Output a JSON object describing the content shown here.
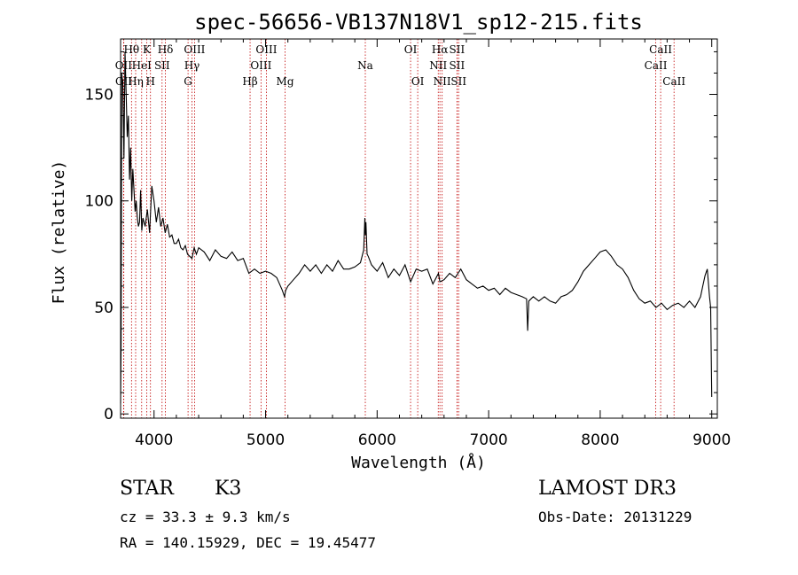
{
  "chart_data": {
    "type": "line",
    "title": "spec-56656-VB137N18V1_sp12-215.fits",
    "xlabel": "Wavelength (Å)",
    "ylabel": "Flux (relative)",
    "xlim": [
      3700,
      9050
    ],
    "ylim": [
      -2,
      176
    ],
    "xticks": [
      4000,
      5000,
      6000,
      7000,
      8000,
      9000
    ],
    "yticks": [
      0,
      50,
      100,
      150
    ],
    "grid": false,
    "line_color": "#000000",
    "marker_color": "#c00000",
    "series": [
      {
        "x": [
          3700,
          3705,
          3710,
          3720,
          3730,
          3740,
          3750,
          3760,
          3770,
          3780,
          3790,
          3800,
          3810,
          3820,
          3830,
          3840,
          3850,
          3860,
          3870,
          3880,
          3890,
          3900,
          3920,
          3940,
          3960,
          3980,
          4000,
          4020,
          4040,
          4060,
          4080,
          4100,
          4120,
          4140,
          4160,
          4180,
          4200,
          4220,
          4240,
          4260,
          4280,
          4300,
          4320,
          4340,
          4360,
          4380,
          4400,
          4450,
          4500,
          4550,
          4600,
          4650,
          4700,
          4750,
          4800,
          4850,
          4900,
          4950,
          5000,
          5050,
          5100,
          5150,
          5170,
          5180,
          5200,
          5250,
          5300,
          5350,
          5400,
          5450,
          5500,
          5550,
          5600,
          5650,
          5700,
          5750,
          5800,
          5850,
          5880,
          5890,
          5895,
          5900,
          5910,
          5920,
          5950,
          6000,
          6050,
          6100,
          6150,
          6200,
          6250,
          6300,
          6350,
          6400,
          6450,
          6500,
          6550,
          6563,
          6600,
          6650,
          6700,
          6750,
          6800,
          6850,
          6900,
          6950,
          7000,
          7050,
          7100,
          7150,
          7200,
          7250,
          7300,
          7340,
          7350,
          7360,
          7400,
          7450,
          7500,
          7550,
          7600,
          7650,
          7700,
          7750,
          7800,
          7850,
          7900,
          7950,
          8000,
          8050,
          8100,
          8150,
          8200,
          8250,
          8300,
          8350,
          8400,
          8450,
          8500,
          8550,
          8600,
          8650,
          8700,
          8750,
          8800,
          8850,
          8900,
          8920,
          8940,
          8960,
          8980,
          8990,
          9000
        ],
        "y": [
          5,
          35,
          160,
          155,
          120,
          170,
          150,
          130,
          140,
          110,
          125,
          100,
          115,
          105,
          95,
          100,
          92,
          88,
          90,
          105,
          86,
          92,
          88,
          96,
          85,
          107,
          100,
          90,
          97,
          88,
          92,
          85,
          89,
          83,
          84,
          80,
          80,
          82,
          78,
          77,
          79,
          75,
          74,
          73,
          78,
          75,
          78,
          76,
          72,
          77,
          74,
          73,
          76,
          72,
          73,
          66,
          68,
          66,
          67,
          66,
          64,
          58,
          55,
          58,
          60,
          63,
          66,
          70,
          67,
          70,
          66,
          70,
          67,
          72,
          68,
          68,
          69,
          71,
          77,
          92,
          84,
          90,
          75,
          74,
          70,
          67,
          71,
          64,
          68,
          65,
          70,
          62,
          68,
          67,
          68,
          61,
          66,
          62,
          63,
          66,
          64,
          68,
          63,
          61,
          59,
          60,
          58,
          59,
          56,
          59,
          57,
          56,
          55,
          54,
          39,
          53,
          55,
          53,
          55,
          53,
          52,
          55,
          56,
          58,
          62,
          67,
          70,
          73,
          76,
          77,
          74,
          70,
          68,
          64,
          58,
          54,
          52,
          53,
          50,
          52,
          49,
          51,
          52,
          50,
          53,
          50,
          55,
          60,
          65,
          68,
          55,
          50,
          8
        ]
      }
    ],
    "lines": [
      {
        "label": "OII",
        "x": 3727,
        "row": 2
      },
      {
        "label": "OII",
        "x": 3729,
        "row": 3
      },
      {
        "label": "Hθ",
        "x": 3798,
        "row": 1
      },
      {
        "label": "Hη",
        "x": 3835,
        "row": 3
      },
      {
        "label": "HeI",
        "x": 3889,
        "row": 2
      },
      {
        "label": "K",
        "x": 3934,
        "row": 1
      },
      {
        "label": "H",
        "x": 3968,
        "row": 3
      },
      {
        "label": "SII",
        "x": 4072,
        "row": 2
      },
      {
        "label": "Hδ",
        "x": 4102,
        "row": 1
      },
      {
        "label": "G",
        "x": 4305,
        "row": 3
      },
      {
        "label": "Hγ",
        "x": 4340,
        "row": 2
      },
      {
        "label": "OIII",
        "x": 4363,
        "row": 1
      },
      {
        "label": "Hβ",
        "x": 4861,
        "row": 3
      },
      {
        "label": "OIII",
        "x": 4959,
        "row": 2
      },
      {
        "label": "OIII",
        "x": 5007,
        "row": 1
      },
      {
        "label": "Mg",
        "x": 5175,
        "row": 3
      },
      {
        "label": "Na",
        "x": 5894,
        "row": 2
      },
      {
        "label": "OI",
        "x": 6300,
        "row": 1
      },
      {
        "label": "OI",
        "x": 6364,
        "row": 3
      },
      {
        "label": "NII",
        "x": 6548,
        "row": 2
      },
      {
        "label": "Hα",
        "x": 6563,
        "row": 1
      },
      {
        "label": "NII",
        "x": 6583,
        "row": 3
      },
      {
        "label": "SII",
        "x": 6716,
        "row": 1
      },
      {
        "label": "SII",
        "x": 6716,
        "row": 2
      },
      {
        "label": "SII",
        "x": 6731,
        "row": 3
      },
      {
        "label": "CaII",
        "x": 8498,
        "row": 2
      },
      {
        "label": "CaII",
        "x": 8542,
        "row": 1
      },
      {
        "label": "CaII",
        "x": 8662,
        "row": 3
      }
    ]
  },
  "info": {
    "class_label": "STAR",
    "subclass_label": "K3",
    "survey": "LAMOST DR3",
    "redshift": "cz = 33.3 ± 9.3 km/s",
    "obs_date": "Obs-Date: 20131229",
    "coords": "RA = 140.15929, DEC =  19.45477"
  }
}
